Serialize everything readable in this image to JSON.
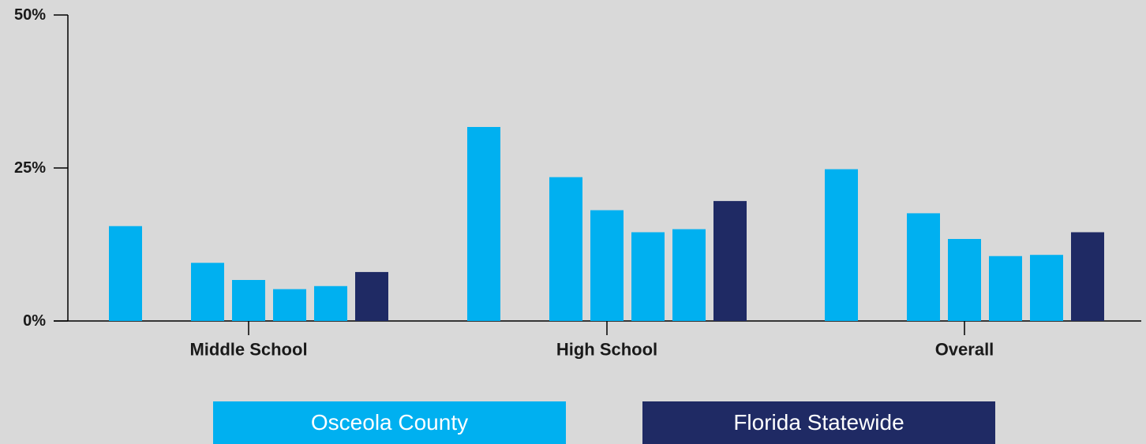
{
  "chart_data": {
    "type": "bar",
    "categories": [
      "Middle School",
      "High School",
      "Overall"
    ],
    "series": [
      {
        "name": "Osceola County",
        "color": "#00b0f0",
        "values": [
          15.5,
          31.7,
          24.8
        ]
      },
      {
        "name": "",
        "color": "#00b0f0",
        "values": [
          null,
          null,
          null
        ]
      },
      {
        "name": "",
        "color": "#00b0f0",
        "values": [
          9.5,
          23.5,
          17.6
        ]
      },
      {
        "name": "",
        "color": "#00b0f0",
        "values": [
          6.7,
          18.1,
          13.4
        ]
      },
      {
        "name": "",
        "color": "#00b0f0",
        "values": [
          5.2,
          14.5,
          10.6
        ]
      },
      {
        "name": "",
        "color": "#00b0f0",
        "values": [
          5.7,
          15.0,
          10.8
        ]
      },
      {
        "name": "Florida Statewide",
        "color": "#1f2a64",
        "values": [
          8.0,
          19.6,
          14.5
        ]
      }
    ],
    "ylim": [
      0,
      50
    ],
    "yticks": [
      0,
      25,
      50
    ],
    "ytick_labels": [
      "0%",
      "25%",
      "50%"
    ],
    "title": "",
    "xlabel": "",
    "ylabel": "",
    "grid": false,
    "legend": {
      "placement": "bottom",
      "items": [
        {
          "label": "Osceola County",
          "color": "#00b0f0"
        },
        {
          "label": "Florida Statewide",
          "color": "#1f2a64"
        }
      ]
    }
  }
}
